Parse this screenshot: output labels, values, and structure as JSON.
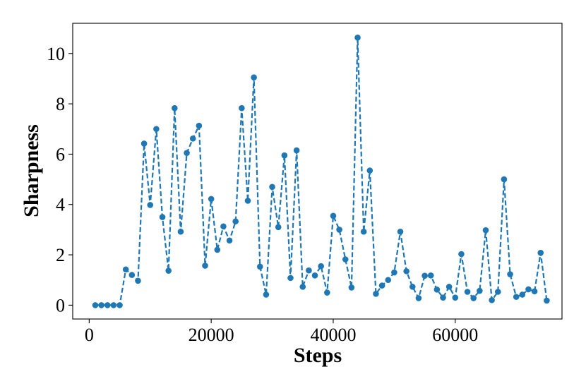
{
  "chart_data": {
    "type": "line",
    "title": "",
    "xlabel": "Steps",
    "ylabel": "Sharpness",
    "xlim": [
      -2700,
      77500
    ],
    "ylim": [
      -0.55,
      11.2
    ],
    "xticks": [
      0,
      20000,
      40000,
      60000
    ],
    "yticks": [
      0,
      2,
      4,
      6,
      8,
      10
    ],
    "grid": false,
    "legend": "none",
    "line_style": "dashed",
    "marker": "circle",
    "color": "#1f77b4",
    "x": [
      1000,
      2000,
      3000,
      4000,
      5000,
      6000,
      7000,
      8000,
      9000,
      10000,
      11000,
      12000,
      13000,
      14000,
      15000,
      16000,
      17000,
      18000,
      19000,
      20000,
      21000,
      22000,
      23000,
      24000,
      25000,
      26000,
      27000,
      28000,
      29000,
      30000,
      31000,
      32000,
      33000,
      34000,
      35000,
      36000,
      37000,
      38000,
      39000,
      40000,
      41000,
      42000,
      43000,
      44000,
      45000,
      46000,
      47000,
      48000,
      49000,
      50000,
      51000,
      52000,
      53000,
      54000,
      55000,
      56000,
      57000,
      58000,
      59000,
      60000,
      61000,
      62000,
      63000,
      64000,
      65000,
      66000,
      67000,
      68000,
      69000,
      70000,
      71000,
      72000,
      73000,
      74000,
      75000
    ],
    "y": [
      0.0,
      0.0,
      0.0,
      0.0,
      0.0,
      1.42,
      1.2,
      0.97,
      6.42,
      3.98,
      7.0,
      3.5,
      1.37,
      7.83,
      2.92,
      6.05,
      6.62,
      7.13,
      1.57,
      4.22,
      2.2,
      3.13,
      2.57,
      3.33,
      7.83,
      4.15,
      9.05,
      1.53,
      0.42,
      4.7,
      3.1,
      5.95,
      1.08,
      6.15,
      0.73,
      1.38,
      1.18,
      1.55,
      0.5,
      3.55,
      3.0,
      1.82,
      0.7,
      10.63,
      2.92,
      5.35,
      0.45,
      0.78,
      1.0,
      1.3,
      2.92,
      1.35,
      0.73,
      0.28,
      1.17,
      1.18,
      0.62,
      0.3,
      0.73,
      0.3,
      2.03,
      0.53,
      0.28,
      0.57,
      2.98,
      0.2,
      0.53,
      5.0,
      1.23,
      0.33,
      0.42,
      0.63,
      0.55,
      2.08,
      0.18
    ]
  }
}
